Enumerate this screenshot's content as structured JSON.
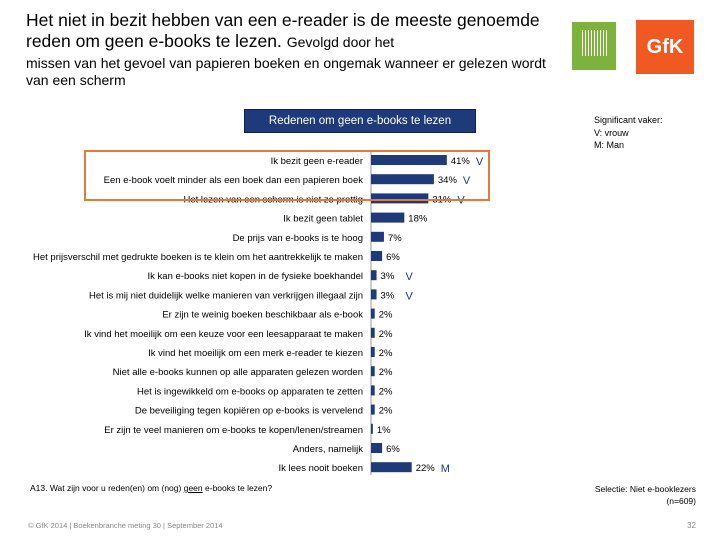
{
  "header": {
    "title_main": "Het niet in bezit hebben van een e-reader is de meeste genoemde reden om geen e-books te lezen.",
    "title_sub1": "Gevolgd door het",
    "title_sub2": "missen van het gevoel van papieren boeken en ongemak wanneer er gelezen wordt van een scherm",
    "logo_text": "GfK"
  },
  "legend": {
    "title": "Significant vaker:",
    "v": "V: vrouw",
    "m": "M: Man"
  },
  "chart_data": {
    "type": "bar",
    "orientation": "horizontal",
    "title": "Redenen om geen e-books te lezen",
    "categories": [
      "Ik bezit geen e-reader",
      "Een e-book voelt minder als een boek dan een papieren boek",
      "Het lezen van een scherm is niet zo prettig",
      "Ik bezit geen tablet",
      "De prijs van e-books is te hoog",
      "Het prijsverschil met gedrukte boeken is te klein om het aantrekkelijk te maken",
      "Ik kan e-books niet kopen in de fysieke boekhandel",
      "Het is mij niet duidelijk welke manieren van verkrijgen illegaal zijn",
      "Er zijn te weinig boeken beschikbaar als e-book",
      "Ik vind het moeilijk om een keuze voor een leesapparaat te maken",
      "Ik vind het moeilijk om een merk e-reader te kiezen",
      "Niet alle e-books kunnen op alle apparaten gelezen worden",
      "Het is ingewikkeld om e-books op apparaten te zetten",
      "De beveiliging tegen kopiëren op e-books is vervelend",
      "Er zijn te veel manieren om e-books te kopen/lenen/streamen",
      "Anders, namelijk",
      "Ik lees nooit boeken"
    ],
    "values": [
      41,
      34,
      31,
      18,
      7,
      6,
      3,
      3,
      2,
      2,
      2,
      2,
      2,
      2,
      1,
      6,
      22
    ],
    "value_labels": [
      "41%",
      "34%",
      "31%",
      "18%",
      "7%",
      "6%",
      "3%",
      "3%",
      "2%",
      "2%",
      "2%",
      "2%",
      "2%",
      "2%",
      "1%",
      "6%",
      "22%"
    ],
    "significance": [
      "V",
      "V",
      "V",
      "",
      "",
      "",
      "V",
      "V",
      "",
      "",
      "",
      "",
      "",
      "",
      "",
      "",
      "M"
    ],
    "xlim": [
      0,
      100
    ],
    "xticks": [
      "0%",
      "20%",
      "40%",
      "60%",
      "80%",
      "100%"
    ],
    "highlighted_categories": [
      0,
      1,
      2
    ],
    "bar_color": "#1f3a78",
    "highlight_color": "#e07b39"
  },
  "footer": {
    "question_prefix": "A13. Wat zijn voor u reden(en) om (nog)",
    "question_underlined": "geen",
    "question_suffix": "e-books te lezen?",
    "selection_line1": "Selectie: Niet e-booklezers",
    "selection_line2": "(n=609)",
    "copyright": "© GfK 2014 | Boekenbranche meting 30 | September 2014",
    "page_number": "32"
  }
}
